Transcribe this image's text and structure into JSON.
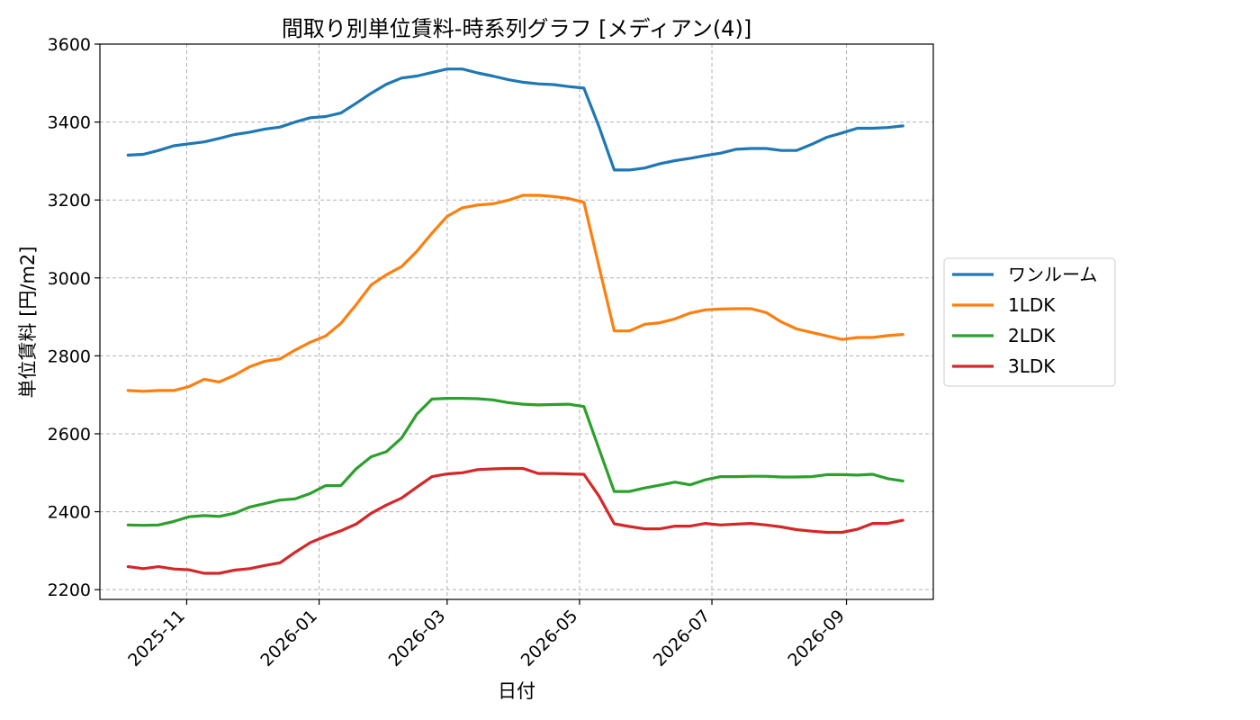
{
  "chart_data": {
    "type": "line",
    "title": "間取り別単位賃料-時系列グラフ [メディアン(4)]",
    "xlabel": "日付",
    "ylabel": "単位賃料 [円/m2]",
    "ylim": [
      2175,
      3600
    ],
    "xlim": [
      "2025-09-22",
      "2026-10-11"
    ],
    "yticks": [
      2200,
      2400,
      2600,
      2800,
      3000,
      3200,
      3400,
      3600
    ],
    "xticks": [
      "2025-11",
      "2026-01",
      "2026-03",
      "2026-05",
      "2026-07",
      "2026-09"
    ],
    "grid": true,
    "legend_position": "center-right",
    "x": [
      "2025-10-05",
      "2025-10-12",
      "2025-10-19",
      "2025-10-26",
      "2025-11-02",
      "2025-11-09",
      "2025-11-16",
      "2025-11-23",
      "2025-11-30",
      "2025-12-07",
      "2025-12-14",
      "2025-12-21",
      "2025-12-28",
      "2026-01-04",
      "2026-01-11",
      "2026-01-18",
      "2026-01-25",
      "2026-02-01",
      "2026-02-08",
      "2026-02-15",
      "2026-02-22",
      "2026-03-01",
      "2026-03-08",
      "2026-03-15",
      "2026-03-22",
      "2026-03-29",
      "2026-04-05",
      "2026-04-12",
      "2026-04-19",
      "2026-04-26",
      "2026-05-03",
      "2026-05-10",
      "2026-05-17",
      "2026-05-24",
      "2026-05-31",
      "2026-06-07",
      "2026-06-14",
      "2026-06-21",
      "2026-06-28",
      "2026-07-05",
      "2026-07-12",
      "2026-07-19",
      "2026-07-26",
      "2026-08-02",
      "2026-08-09",
      "2026-08-16",
      "2026-08-23",
      "2026-08-30",
      "2026-09-06",
      "2026-09-13",
      "2026-09-20",
      "2026-09-27"
    ],
    "series": [
      {
        "name": "ワンルーム",
        "color": "#1f77b4",
        "values": [
          3315,
          3317,
          3327,
          3339,
          3344,
          3349,
          3358,
          3368,
          3374,
          3382,
          3387,
          3400,
          3411,
          3414,
          3423,
          3448,
          3474,
          3497,
          3513,
          3518,
          3527,
          3536,
          3536,
          3526,
          3518,
          3509,
          3502,
          3498,
          3496,
          3491,
          3487,
          3388,
          3277,
          3277,
          3282,
          3293,
          3301,
          3307,
          3314,
          3320,
          3330,
          3332,
          3332,
          3327,
          3327,
          3343,
          3361,
          3372,
          3384,
          3384,
          3386,
          3390
        ]
      },
      {
        "name": "1LDK",
        "color": "#ff7f0e",
        "values": [
          2711,
          2709,
          2711,
          2711,
          2721,
          2740,
          2733,
          2750,
          2772,
          2786,
          2792,
          2815,
          2835,
          2851,
          2883,
          2931,
          2982,
          3008,
          3029,
          3068,
          3115,
          3158,
          3180,
          3187,
          3190,
          3199,
          3212,
          3212,
          3209,
          3204,
          3194,
          3029,
          2864,
          2864,
          2881,
          2885,
          2895,
          2910,
          2918,
          2920,
          2921,
          2921,
          2911,
          2887,
          2869,
          2860,
          2851,
          2842,
          2847,
          2847,
          2852,
          2855
        ]
      },
      {
        "name": "2LDK",
        "color": "#2ca02c",
        "values": [
          2366,
          2365,
          2366,
          2375,
          2387,
          2390,
          2388,
          2396,
          2412,
          2421,
          2430,
          2433,
          2447,
          2467,
          2467,
          2510,
          2541,
          2554,
          2589,
          2650,
          2689,
          2691,
          2691,
          2690,
          2687,
          2680,
          2676,
          2674,
          2675,
          2676,
          2670,
          2561,
          2452,
          2452,
          2461,
          2468,
          2476,
          2469,
          2482,
          2490,
          2490,
          2491,
          2491,
          2489,
          2489,
          2490,
          2495,
          2495,
          2494,
          2496,
          2485,
          2479
        ]
      },
      {
        "name": "3LDK",
        "color": "#d62728",
        "values": [
          2259,
          2254,
          2259,
          2253,
          2251,
          2242,
          2242,
          2250,
          2254,
          2262,
          2269,
          2296,
          2321,
          2337,
          2351,
          2368,
          2396,
          2417,
          2435,
          2463,
          2490,
          2497,
          2500,
          2508,
          2510,
          2511,
          2511,
          2498,
          2498,
          2497,
          2496,
          2440,
          2369,
          2362,
          2356,
          2356,
          2363,
          2363,
          2370,
          2366,
          2368,
          2370,
          2366,
          2361,
          2354,
          2350,
          2347,
          2347,
          2355,
          2370,
          2370,
          2378
        ]
      }
    ]
  }
}
